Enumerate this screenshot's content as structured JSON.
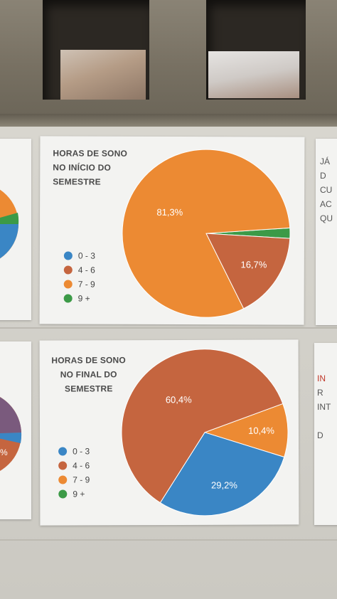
{
  "colors": {
    "blue": "#3a86c5",
    "brown": "#c5653f",
    "orange": "#ec8a33",
    "green": "#3c9a47"
  },
  "legend": [
    {
      "label": "0 - 3",
      "color": "#3a86c5"
    },
    {
      "label": "4 - 6",
      "color": "#c5653f"
    },
    {
      "label": "7 - 9",
      "color": "#ec8a33"
    },
    {
      "label": "9 +",
      "color": "#3c9a47"
    }
  ],
  "charts": [
    {
      "type": "pie",
      "title_lines": [
        "HORAS DE SONO",
        "NO INÍCIO DO",
        "SEMESTRE"
      ],
      "slices": [
        {
          "category": "0 - 3",
          "value": 0,
          "color": "#3a86c5",
          "label": ""
        },
        {
          "category": "4 - 6",
          "value": 16.7,
          "color": "#c5653f",
          "label": "16,7%"
        },
        {
          "category": "7 - 9",
          "value": 81.3,
          "color": "#ec8a33",
          "label": "81,3%"
        },
        {
          "category": "9 +",
          "value": 2.0,
          "color": "#3c9a47",
          "label": ""
        }
      ]
    },
    {
      "type": "pie",
      "title_lines": [
        "HORAS DE SONO",
        "NO FINAL DO",
        "SEMESTRE"
      ],
      "slices": [
        {
          "category": "0 - 3",
          "value": 29.2,
          "color": "#3a86c5",
          "label": "29,2%"
        },
        {
          "category": "4 - 6",
          "value": 60.4,
          "color": "#c5653f",
          "label": "60,4%"
        },
        {
          "category": "7 - 9",
          "value": 10.4,
          "color": "#ec8a33",
          "label": "10,4%"
        },
        {
          "category": "9 +",
          "value": 0,
          "color": "#3c9a47",
          "label": ""
        }
      ]
    }
  ],
  "edge_posters": {
    "right_top_lines": [
      "JÁ",
      "D",
      "CU",
      "AC",
      "QU"
    ],
    "right_bottom_lines": [
      "",
      "IN",
      "R",
      "INT",
      "",
      "D"
    ],
    "left_bottom_label": "%"
  }
}
